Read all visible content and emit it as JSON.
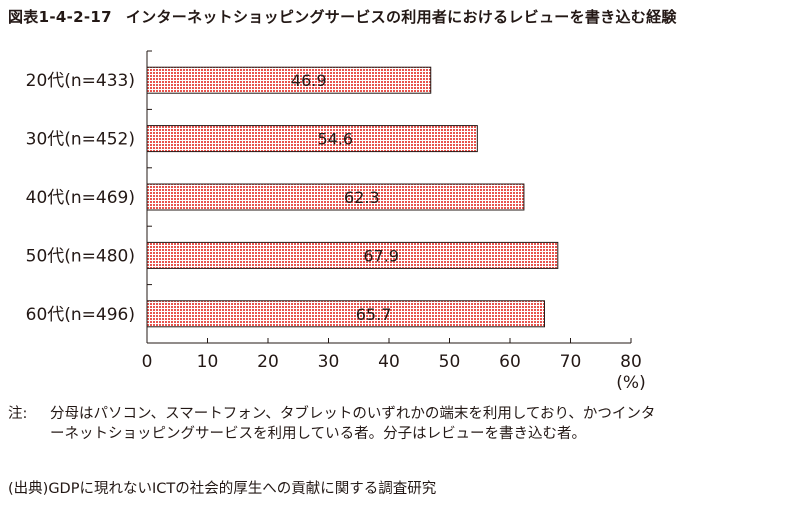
{
  "figure": {
    "number": "図表1-4-2-17",
    "title": "インターネットショッピングサービスの利用者におけるレビューを書き込む経験"
  },
  "chart_data": {
    "type": "bar",
    "orientation": "horizontal",
    "title": "インターネットショッピングサービスの利用者におけるレビューを書き込む経験",
    "categories": [
      "20代(n=433)",
      "30代(n=452)",
      "40代(n=469)",
      "50代(n=480)",
      "60代(n=496)"
    ],
    "values": [
      46.9,
      54.6,
      62.3,
      67.9,
      65.7
    ],
    "value_labels": [
      "46.9",
      "54.6",
      "62.3",
      "67.9",
      "65.7"
    ],
    "xlim": [
      0,
      80
    ],
    "xticks": [
      "0",
      "10",
      "20",
      "30",
      "40",
      "50",
      "60",
      "70",
      "80"
    ],
    "xunit": "(%)",
    "bar_color": "#e8544e",
    "bar_fill_pattern": "dotted-red"
  },
  "note": {
    "label": "注:",
    "text": "分母はパソコン、スマートフォン、タブレットのいずれかの端末を利用しており、かつインターネットショッピングサービスを利用している者。分子はレビューを書き込む者。"
  },
  "source": {
    "text": "(出典)GDPに現れないICTの社会的厚生への貢献に関する調査研究"
  }
}
